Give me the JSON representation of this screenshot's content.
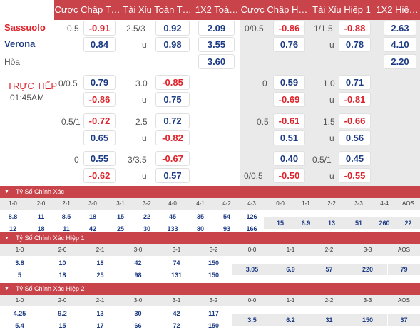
{
  "headers": [
    "Cược Chấp T…",
    "Tài Xỉu Toàn T…",
    "1X2 Toà…",
    "Cược Chấp H…",
    "Tài Xỉu Hiệp 1",
    "1X2 Hiệ…"
  ],
  "teams": {
    "home": "Sassuolo",
    "away": "Verona",
    "draw": "Hòa"
  },
  "live": {
    "label": "TRỰC TIẾP",
    "time": "01:45AM"
  },
  "main": {
    "r1": {
      "hdp": "0.5",
      "hdp_v": "-0.91",
      "ou": "2.5/3",
      "ou_v": "0.92",
      "x12": "2.09",
      "hhdp": "0/0.5",
      "hhdp_v": "-0.86",
      "hou": "1/1.5",
      "hou_v": "-0.88",
      "hx12": "2.63"
    },
    "r2": {
      "hdp_v": "0.84",
      "u": "u",
      "ou_v": "0.98",
      "x12": "3.55",
      "hhdp_v": "0.76",
      "hu": "u",
      "hou_v": "0.78",
      "hx12": "4.10"
    },
    "r3": {
      "x12": "3.60",
      "hx12": "2.20"
    },
    "r4": {
      "hdp": "0/0.5",
      "hdp_v": "0.79",
      "ou": "3.0",
      "ou_v": "-0.85",
      "hhdp": "0",
      "hhdp_v": "0.59",
      "hou": "1.0",
      "hou_v": "0.71"
    },
    "r5": {
      "hdp_v": "-0.86",
      "u": "u",
      "ou_v": "0.75",
      "hhdp_v": "-0.69",
      "hu": "u",
      "hou_v": "-0.81"
    },
    "r6": {
      "hdp": "0.5/1",
      "hdp_v": "-0.72",
      "ou": "2.5",
      "ou_v": "0.72",
      "hhdp": "0.5",
      "hhdp_v": "-0.61",
      "hou": "1.5",
      "hou_v": "-0.66"
    },
    "r7": {
      "hdp_v": "0.65",
      "u": "u",
      "ou_v": "-0.82",
      "hhdp_v": "0.51",
      "hu": "u",
      "hou_v": "0.56"
    },
    "r8": {
      "hdp": "0",
      "hdp_v": "0.55",
      "ou": "3/3.5",
      "ou_v": "-0.67",
      "hhdp_v": "0.40",
      "hou": "0.5/1",
      "hou_v": "0.45"
    },
    "r9": {
      "hdp_v": "-0.62",
      "u": "u",
      "ou_v": "0.57",
      "hhdp": "0/0.5",
      "hhdp_v": "-0.50",
      "hu": "u",
      "hou_v": "-0.55"
    }
  },
  "cs1": {
    "title": "Tỷ Số Chính Xác",
    "heads": [
      "1-0",
      "2-0",
      "2-1",
      "3-0",
      "3-1",
      "3-2",
      "4-0",
      "4-1",
      "4-2",
      "4-3",
      "0-0",
      "1-1",
      "2-2",
      "3-3",
      "4-4",
      "AOS"
    ],
    "top": [
      "8.8",
      "11",
      "8.5",
      "18",
      "15",
      "22",
      "45",
      "35",
      "54",
      "126"
    ],
    "bot": [
      "12",
      "18",
      "11",
      "42",
      "25",
      "30",
      "133",
      "80",
      "93",
      "166"
    ],
    "mid": [
      "15",
      "6.9",
      "13",
      "51",
      "260",
      "22"
    ]
  },
  "cs2": {
    "title": "Tỷ Số Chính Xác Hiệp 1",
    "heads": [
      "1-0",
      "2-0",
      "2-1",
      "3-0",
      "3-1",
      "3-2",
      "0-0",
      "1-1",
      "2-2",
      "3-3",
      "AOS"
    ],
    "top": [
      "3.8",
      "10",
      "18",
      "42",
      "74",
      "150"
    ],
    "bot": [
      "5",
      "18",
      "25",
      "98",
      "131",
      "150"
    ],
    "mid": [
      "3.05",
      "6.9",
      "57",
      "220",
      "79"
    ]
  },
  "cs3": {
    "title": "Tỷ Số Chính Xác Hiệp 2",
    "heads": [
      "1-0",
      "2-0",
      "2-1",
      "3-0",
      "3-1",
      "3-2",
      "0-0",
      "1-1",
      "2-2",
      "3-3",
      "AOS"
    ],
    "top": [
      "4.25",
      "9.2",
      "13",
      "30",
      "42",
      "117"
    ],
    "bot": [
      "5.4",
      "15",
      "17",
      "66",
      "72",
      "150"
    ],
    "mid": [
      "3.5",
      "6.2",
      "31",
      "150",
      "37"
    ]
  }
}
